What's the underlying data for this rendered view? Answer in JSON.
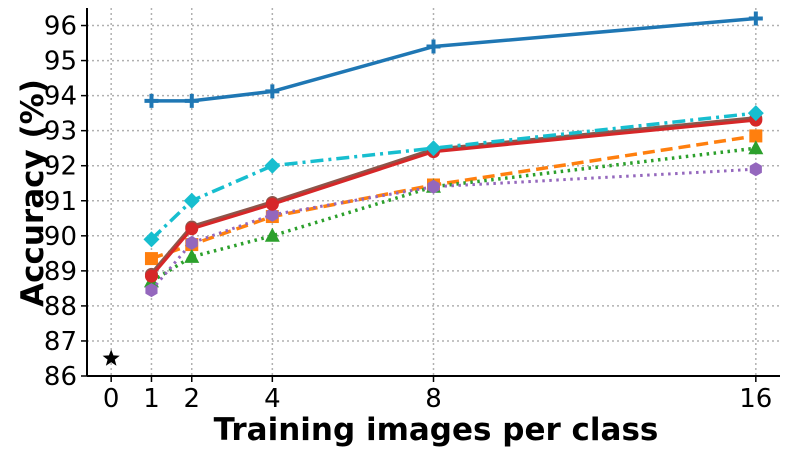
{
  "chart_data": {
    "type": "line",
    "title": "",
    "xlabel": "Training images per class",
    "ylabel": "Accuracy (%)",
    "xticks": [
      0,
      1,
      2,
      4,
      8,
      16
    ],
    "yticks": [
      86,
      87,
      88,
      89,
      90,
      91,
      92,
      93,
      94,
      95,
      96
    ],
    "xlim": [
      -0.6,
      16.6
    ],
    "ylim": [
      86,
      96.5
    ],
    "grid": true,
    "legend": "none",
    "zero_shot": {
      "x": 0,
      "y": 86.5,
      "marker": "star",
      "color": "#000000"
    },
    "series": [
      {
        "x": [
          1,
          2,
          4,
          8,
          16
        ],
        "values": [
          93.85,
          93.85,
          94.12,
          95.4,
          96.2
        ],
        "color": "#1f77b4",
        "dash": "solid",
        "width": 3.5,
        "marker": "plus"
      },
      {
        "x": [
          1,
          2,
          4,
          8,
          16
        ],
        "values": [
          89.35,
          89.75,
          90.55,
          91.45,
          92.85
        ],
        "color": "#ff7f0e",
        "dash": "dashed",
        "width": 3.5,
        "marker": "square"
      },
      {
        "x": [
          1,
          2,
          4,
          8,
          16
        ],
        "values": [
          88.7,
          89.4,
          90.0,
          91.4,
          92.5
        ],
        "color": "#2ca02c",
        "dash": "dotted",
        "width": 3.5,
        "marker": "triangle"
      },
      {
        "x": [
          1,
          2,
          4,
          8,
          16
        ],
        "values": [
          88.45,
          89.8,
          90.6,
          91.4,
          91.9
        ],
        "color": "#9467bd",
        "dash": "dotted",
        "width": 3,
        "marker": "hexagon"
      },
      {
        "x": [
          1,
          2,
          4,
          8,
          16
        ],
        "values": [
          88.9,
          90.25,
          90.95,
          92.45,
          93.35
        ],
        "color": "#8c564b",
        "dash": "solid",
        "width": 4.5,
        "marker": "circle"
      },
      {
        "x": [
          1,
          2,
          4,
          8,
          16
        ],
        "values": [
          88.85,
          90.2,
          90.9,
          92.4,
          93.3
        ],
        "color": "#d62728",
        "dash": "solid",
        "width": 3,
        "marker": "circle"
      },
      {
        "x": [
          1,
          2,
          4,
          8,
          16
        ],
        "values": [
          89.9,
          91.0,
          92.0,
          92.5,
          93.5
        ],
        "color": "#17becf",
        "dash": "dashdot",
        "width": 3.5,
        "marker": "diamond"
      }
    ]
  }
}
